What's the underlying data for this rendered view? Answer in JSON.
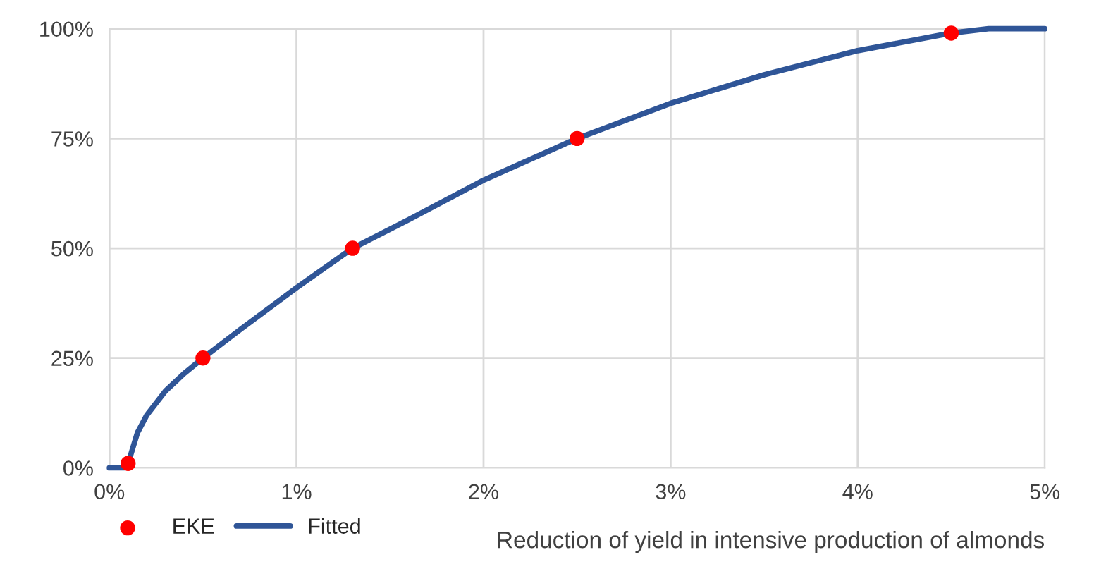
{
  "chart_data": {
    "type": "scatter",
    "xlabel": "Reduction of yield in intensive production of almonds",
    "legend": "bottom left",
    "grid": true,
    "xlim": [
      0,
      5
    ],
    "xticks": [
      {
        "value": 0,
        "label": "0%"
      },
      {
        "value": 1,
        "label": "1%"
      },
      {
        "value": 2,
        "label": "2%"
      },
      {
        "value": 3,
        "label": "3%"
      },
      {
        "value": 4,
        "label": "4%"
      },
      {
        "value": 5,
        "label": "5%"
      }
    ],
    "ylim": [
      0,
      100
    ],
    "yticks": [
      {
        "value": 0,
        "label": "0%"
      },
      {
        "value": 25,
        "label": "25%"
      },
      {
        "value": 50,
        "label": "50%"
      },
      {
        "value": 75,
        "label": "75%"
      },
      {
        "value": 100,
        "label": "100%"
      }
    ],
    "series": [
      {
        "name": "EKE",
        "marker": "circle",
        "color": "#ff0000",
        "x": [
          0.1,
          0.5,
          1.3,
          2.5,
          4.5
        ],
        "values": [
          1,
          25,
          50,
          75,
          99
        ]
      },
      {
        "name": "Fitted",
        "type": "line",
        "marker": "none",
        "line_style": "solid",
        "color": "#2f5597",
        "x": [
          0,
          0.08,
          0.1,
          0.15,
          0.2,
          0.3,
          0.4,
          0.5,
          0.7,
          1.0,
          1.3,
          1.6,
          2.0,
          2.5,
          3.0,
          3.5,
          4.0,
          4.5,
          4.7,
          5.0
        ],
        "values": [
          0,
          0,
          1,
          8,
          12,
          17.5,
          21.5,
          25,
          31.5,
          41,
          50,
          56.5,
          65.5,
          75,
          83,
          89.5,
          95,
          99,
          100,
          100
        ]
      }
    ]
  }
}
